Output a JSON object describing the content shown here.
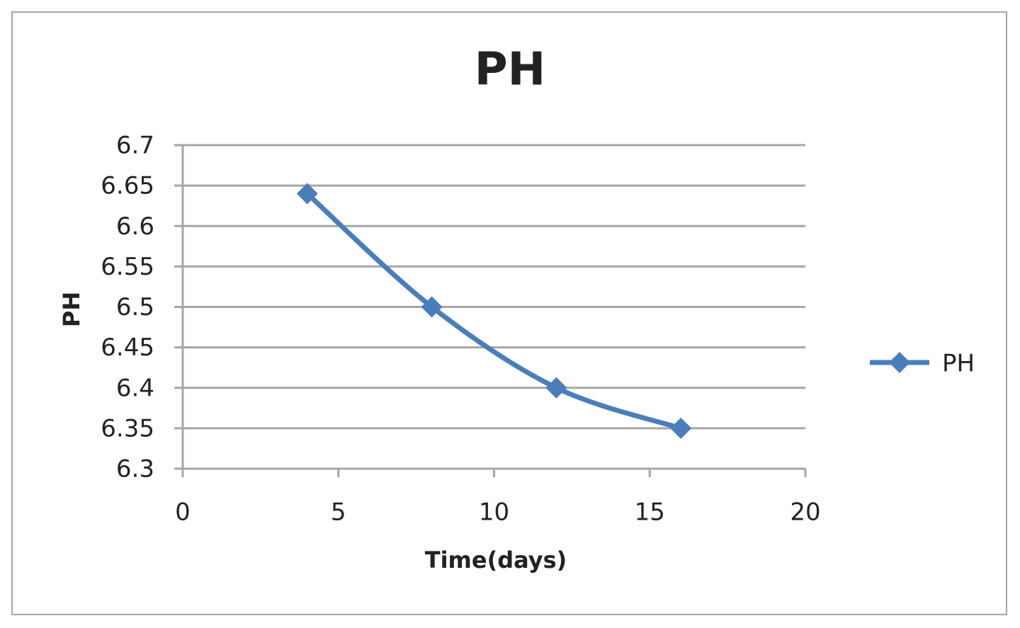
{
  "chart_data": {
    "type": "line",
    "title": "PH",
    "x_label": "Time(days)",
    "y_label": "PH",
    "x": [
      4,
      8,
      12,
      16
    ],
    "series": [
      {
        "name": "PH",
        "color": "#4a7ebb",
        "values": [
          6.64,
          6.5,
          6.4,
          6.35
        ]
      }
    ],
    "xlim": [
      0,
      20
    ],
    "xticks": [
      0,
      5,
      10,
      15,
      20
    ],
    "ylim": [
      6.3,
      6.7
    ],
    "yticks": [
      6.3,
      6.35,
      6.4,
      6.45,
      6.5,
      6.55,
      6.6,
      6.65,
      6.7
    ],
    "grid": true,
    "legend": "right",
    "smooth": true
  }
}
